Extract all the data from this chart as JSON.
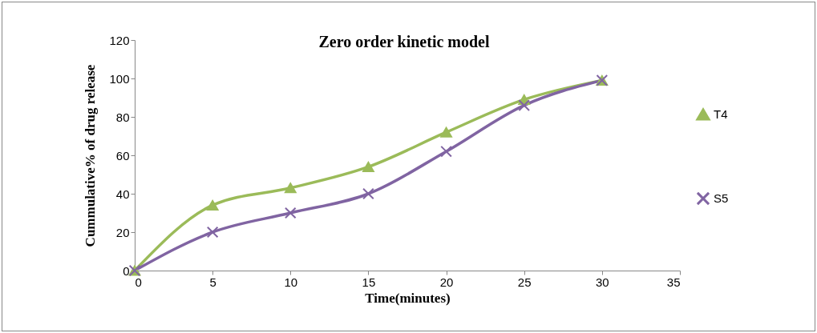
{
  "chart_data": {
    "type": "line",
    "title": "Zero order kinetic model",
    "xlabel": "Time(minutes)",
    "ylabel": "Cummulative% of drug release",
    "x": [
      0,
      5,
      10,
      15,
      20,
      25,
      30
    ],
    "series": [
      {
        "name": "T4",
        "color": "#9bbb59",
        "marker": "triangle",
        "values": [
          0,
          34,
          43,
          54,
          72,
          89,
          99
        ]
      },
      {
        "name": "S5",
        "color": "#8064a2",
        "marker": "cross",
        "values": [
          0,
          20,
          30,
          40,
          62,
          86,
          99
        ]
      }
    ],
    "xlim": [
      0,
      35
    ],
    "xticks": [
      0,
      5,
      10,
      15,
      20,
      25,
      30,
      35
    ],
    "ylim": [
      0,
      120
    ],
    "yticks": [
      0,
      20,
      40,
      60,
      80,
      100,
      120
    ],
    "grid": false,
    "legend": "right",
    "line_style": "solid"
  }
}
